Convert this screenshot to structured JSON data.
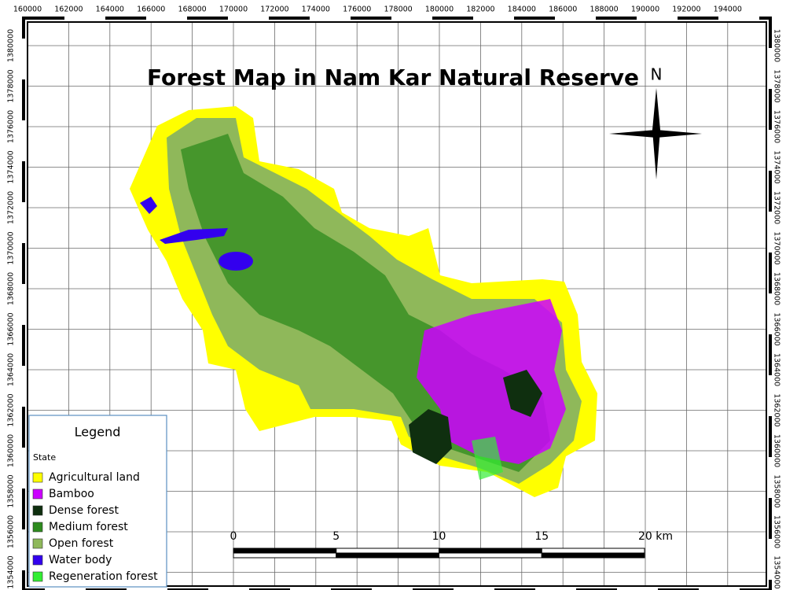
{
  "title": "Forest Map in Nam Kar Natural Reserve",
  "north": "N",
  "x_ticks": [
    160000,
    162000,
    164000,
    166000,
    168000,
    170000,
    172000,
    174000,
    176000,
    178000,
    180000,
    182000,
    184000,
    186000,
    188000,
    190000,
    192000,
    194000
  ],
  "y_ticks": [
    1380000,
    1378000,
    1376000,
    1374000,
    1372000,
    1370000,
    1368000,
    1366000,
    1364000,
    1362000,
    1360000,
    1358000,
    1356000,
    1354000
  ],
  "legend": {
    "title": "Legend",
    "subtitle": "State",
    "items": [
      {
        "label": "Agricultural land",
        "color": "#ffff00"
      },
      {
        "label": "Bamboo",
        "color": "#cc00ff"
      },
      {
        "label": "Dense forest",
        "color": "#0f2f0f"
      },
      {
        "label": "Medium forest",
        "color": "#2e8b1e"
      },
      {
        "label": "Open forest",
        "color": "#8fb85a"
      },
      {
        "label": "Water body",
        "color": "#3300ee"
      },
      {
        "label": "Regeneration forest",
        "color": "#33ee33"
      }
    ]
  },
  "scale_bar": {
    "labels": [
      "0",
      "5",
      "10",
      "15",
      "20 km"
    ]
  }
}
